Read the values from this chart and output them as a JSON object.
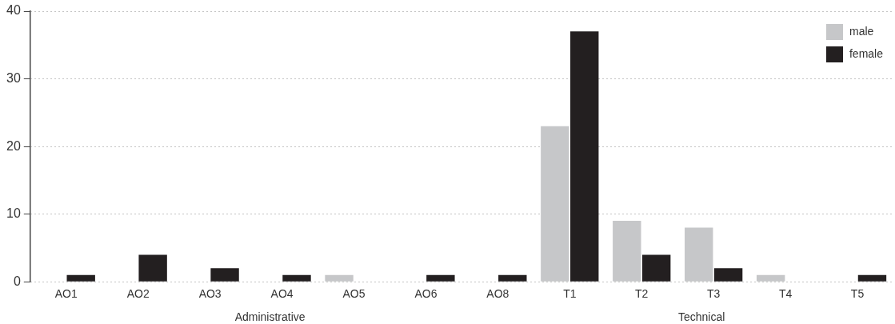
{
  "chart_data": {
    "type": "bar",
    "categories": [
      "AO1",
      "AO2",
      "AO3",
      "AO4",
      "AO5",
      "AO6",
      "AO8",
      "T1",
      "T2",
      "T3",
      "T4",
      "T5"
    ],
    "series": [
      {
        "name": "male",
        "color": "#c6c7c9",
        "values": [
          0,
          0,
          0,
          0,
          1,
          0,
          0,
          23,
          9,
          8,
          1,
          0
        ]
      },
      {
        "name": "female",
        "color": "#231f20",
        "values": [
          1,
          4,
          2,
          1,
          0,
          1,
          1,
          37,
          4,
          2,
          0,
          1
        ]
      }
    ],
    "ylim": [
      0,
      40
    ],
    "yticks": [
      0,
      10,
      20,
      30,
      40
    ],
    "grid": "y",
    "legend": "top right",
    "annotations": [
      "Administrative",
      "Technical"
    ]
  }
}
